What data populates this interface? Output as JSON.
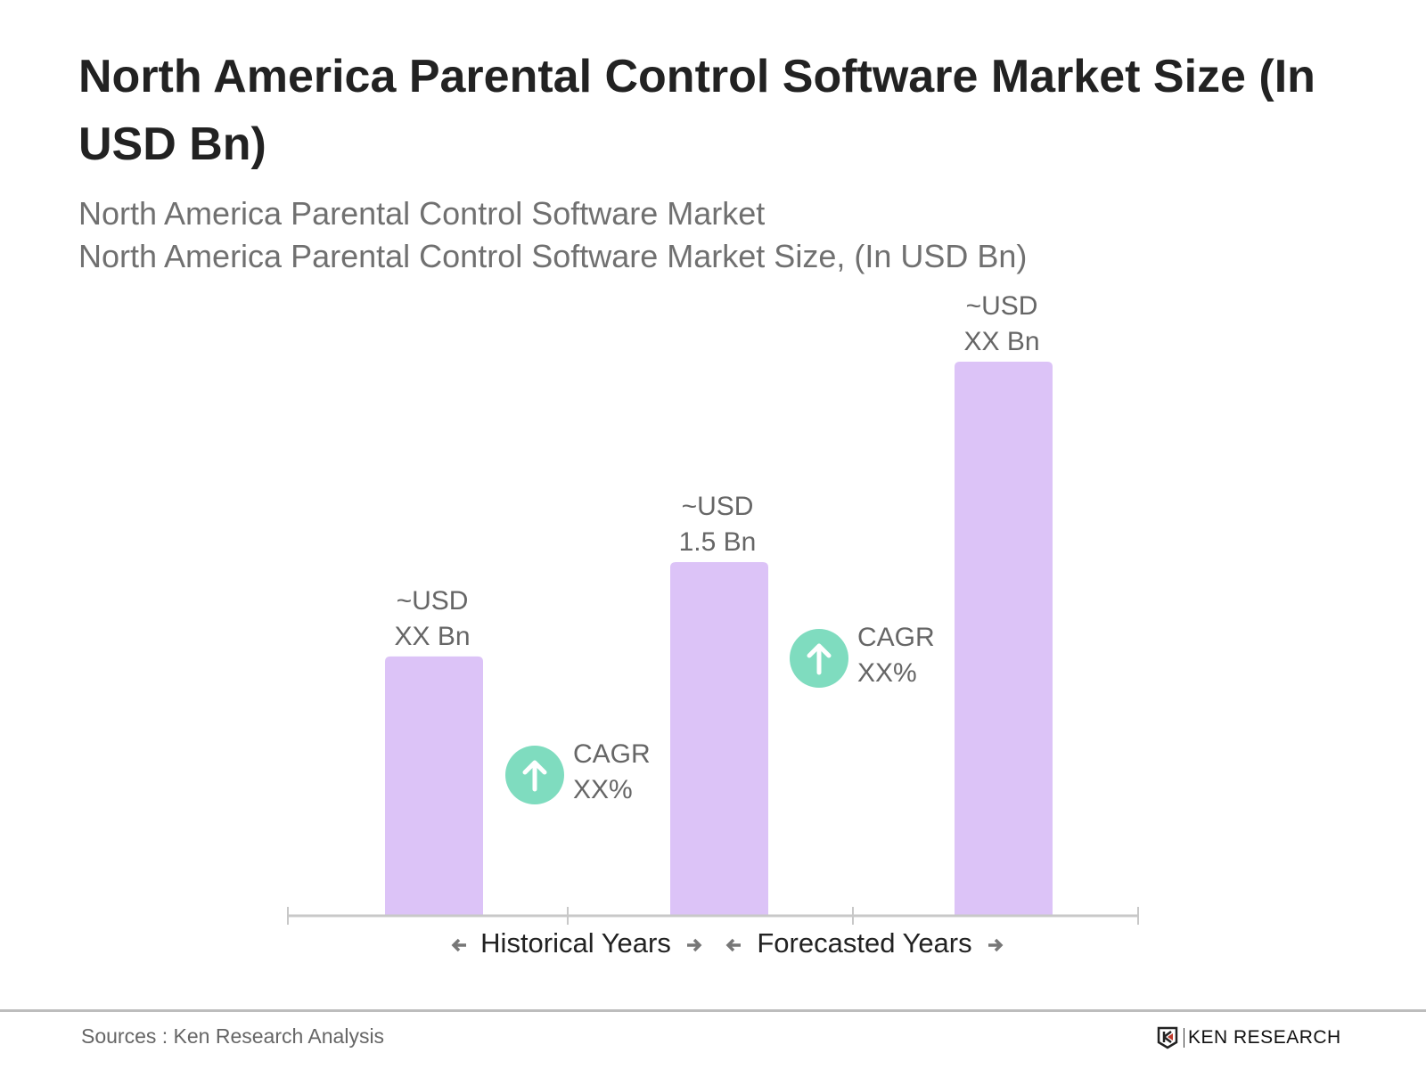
{
  "chart_data": {
    "type": "bar",
    "title": "North America Parental Control Software Market Size (In USD Bn)",
    "subtitle": [
      "North America Parental Control Software Market",
      "North America Parental Control Software Market Size, (In USD Bn)"
    ],
    "categories": [
      "",
      "",
      ""
    ],
    "values": [
      1.1,
      1.5,
      2.35
    ],
    "data_labels": [
      [
        "~USD",
        "XX Bn"
      ],
      [
        "~USD",
        "1.5 Bn"
      ],
      [
        "~USD",
        "XX Bn"
      ]
    ],
    "bar_color": "#dcc3f7",
    "cagr": [
      {
        "label": "CAGR",
        "value": "XX%"
      },
      {
        "label": "CAGR",
        "value": "XX%"
      }
    ],
    "cagr_color": "#7fdcbf",
    "periods": [
      "Historical Years",
      "Forecasted Years"
    ],
    "ylim": [
      0,
      2.5
    ],
    "grid": false,
    "legend": "none"
  },
  "footer": {
    "source": "Sources : Ken Research Analysis",
    "logo": "KEN RESEARCH"
  }
}
